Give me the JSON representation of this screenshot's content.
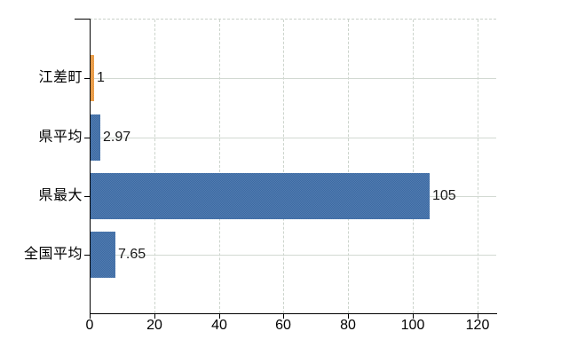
{
  "chart_data": {
    "type": "bar",
    "orientation": "horizontal",
    "title": "",
    "xlabel": "",
    "ylabel": "",
    "categories": [
      "江差町",
      "県平均",
      "県最大",
      "全国平均"
    ],
    "values": [
      1,
      2.97,
      105,
      7.65
    ],
    "value_labels": [
      "1",
      "2.97",
      "105",
      "7.65"
    ],
    "bar_colors": [
      "#e8973f",
      "#3b6aa4",
      "#3b6aa4",
      "#3b6aa4"
    ],
    "highlight_color": "#e8973f",
    "base_color": "#3b6aa4",
    "x_tick_values": [
      0,
      20,
      40,
      60,
      80,
      100,
      120
    ],
    "x_tick_labels": [
      "0",
      "20",
      "40",
      "60",
      "80",
      "100",
      "120"
    ],
    "xlim": [
      0,
      125.8
    ],
    "grid": {
      "vertical_style": "dashed",
      "horizontal_style": "solid",
      "color": "#ccd4cc"
    },
    "axis_color": "#000000",
    "background_color": "#ffffff",
    "legend": "none"
  }
}
